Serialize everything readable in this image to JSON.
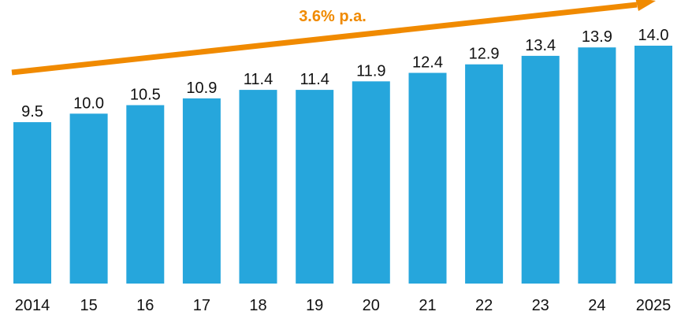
{
  "chart_data": {
    "type": "bar",
    "categories": [
      "2014",
      "15",
      "16",
      "17",
      "18",
      "19",
      "20",
      "21",
      "22",
      "23",
      "24",
      "2025"
    ],
    "values": [
      9.5,
      10.0,
      10.5,
      10.9,
      11.4,
      11.4,
      11.9,
      12.4,
      12.9,
      13.4,
      13.9,
      14.0
    ],
    "value_labels": [
      "9.5",
      "10.0",
      "10.5",
      "10.9",
      "11.4",
      "11.4",
      "11.9",
      "12.4",
      "12.9",
      "13.4",
      "13.9",
      "14.0"
    ],
    "title": "",
    "xlabel": "",
    "ylabel": "",
    "ylim": [
      0,
      14.0
    ],
    "grid": false,
    "legend": "none",
    "annotations": [
      {
        "type": "growth-arrow",
        "text": "3.6% p.a."
      }
    ],
    "colors": {
      "bar": "#26A6DC",
      "arrow": "#F08A00"
    }
  }
}
